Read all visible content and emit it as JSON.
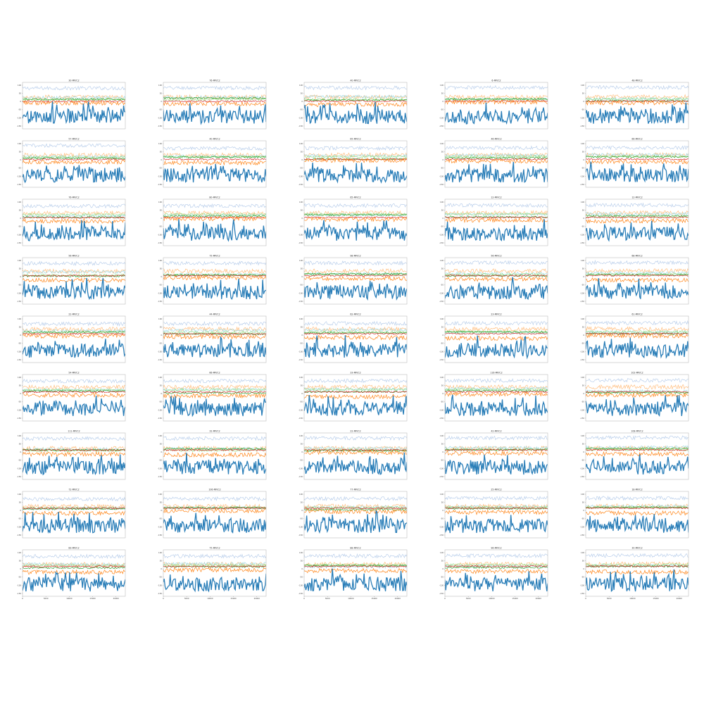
{
  "figure": {
    "rows": 9,
    "cols": 5,
    "y_ticks_shown": [
      "100",
      "50",
      "0",
      "-50",
      "-100",
      "-150"
    ],
    "x_ticks_shown": [
      "0",
      "5000",
      "10000",
      "15000",
      "20000"
    ]
  },
  "colors": {
    "s1": "#1f77b4",
    "s2": "#aec7e8",
    "s3": "#ff7f0e",
    "s4": "#ffbb78",
    "s5": "#2ca02c",
    "s6": "#98df8a",
    "s7": "#d62728",
    "s8": "#9edae5"
  },
  "chart_data": {
    "type": "line",
    "panels": [
      {
        "title": "30-MP/C2"
      },
      {
        "title": "76-MP/C2"
      },
      {
        "title": "40-MP/C2"
      },
      {
        "title": "6-MP/C2"
      },
      {
        "title": "48-MP/C2"
      },
      {
        "title": "57-MP/C2"
      },
      {
        "title": "40-MP/C2"
      },
      {
        "title": "65-MP/C2"
      },
      {
        "title": "46-MP/C2"
      },
      {
        "title": "66-MP/C2"
      },
      {
        "title": "76-MP/C2"
      },
      {
        "title": "80-MP/C2"
      },
      {
        "title": "65-MP/C2"
      },
      {
        "title": "12-MP/C2"
      },
      {
        "title": "12-MP/C2"
      },
      {
        "title": "56-MP/C2"
      },
      {
        "title": "75-MP/C2"
      },
      {
        "title": "98-MP/C2"
      },
      {
        "title": "56-MP/C2"
      },
      {
        "title": "68-MP/C2"
      },
      {
        "title": "22-MP/C2"
      },
      {
        "title": "44-MP/C2"
      },
      {
        "title": "62-MP/C2"
      },
      {
        "title": "23-MP/C2"
      },
      {
        "title": "61-MP/C2"
      },
      {
        "title": "54-MP/C2"
      },
      {
        "title": "66-MP/C2"
      },
      {
        "title": "33-MP/C2"
      },
      {
        "title": "116-MP/C2"
      },
      {
        "title": "102-MP/C2"
      },
      {
        "title": "111-MP/C2"
      },
      {
        "title": "32-MP/C2"
      },
      {
        "title": "22-MP/C2"
      },
      {
        "title": "42-MP/C2"
      },
      {
        "title": "108-MP/C2"
      },
      {
        "title": "72-MP/C2"
      },
      {
        "title": "106-MP/C2"
      },
      {
        "title": "77-MP/C2"
      },
      {
        "title": "25-MP/C2"
      },
      {
        "title": "18-MP/C2"
      },
      {
        "title": "89-MP/C2"
      },
      {
        "title": "75-MP/C2"
      },
      {
        "title": "88-MP/C2"
      },
      {
        "title": "96-MP/C2"
      },
      {
        "title": "30-MP/C2"
      }
    ],
    "series_levels": [
      {
        "key": "s2",
        "mean": 80,
        "amp": 12
      },
      {
        "key": "s4",
        "mean": 30,
        "amp": 14
      },
      {
        "key": "s8",
        "mean": 20,
        "amp": 10
      },
      {
        "key": "s6",
        "mean": 15,
        "amp": 8
      },
      {
        "key": "s5",
        "mean": 10,
        "amp": 6
      },
      {
        "key": "s7",
        "mean": 5,
        "amp": 5
      },
      {
        "key": "s3",
        "mean": -15,
        "amp": 14
      },
      {
        "key": "s1",
        "mean": -100,
        "amp": 45
      }
    ],
    "ylim": [
      -180,
      120
    ],
    "xlim": [
      0,
      22000
    ]
  }
}
